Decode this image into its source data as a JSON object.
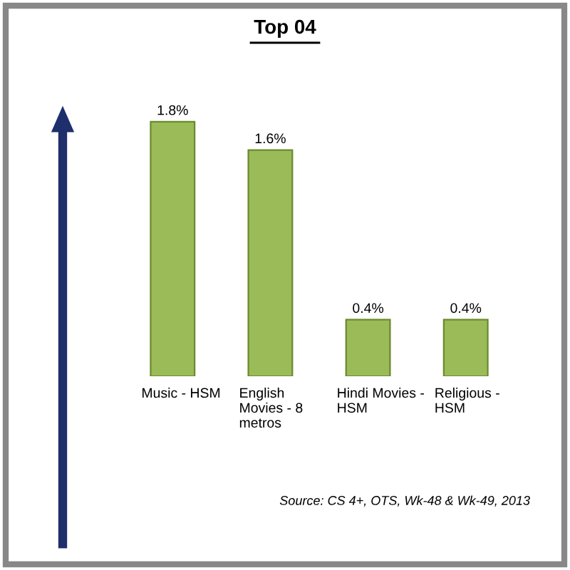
{
  "chart_data": {
    "type": "bar",
    "title": "Top 04",
    "categories": [
      "Music - HSM",
      "English\nMovies - 8\nmetros",
      "Hindi Movies -\nHSM",
      "Religious -\nHSM"
    ],
    "values": [
      1.8,
      1.6,
      0.4,
      0.4
    ],
    "value_labels": [
      "1.8%",
      "1.6%",
      "0.4%",
      "0.4%"
    ],
    "color": "#9bbb59",
    "annotations": [
      "Source: CS 4+, OTS, Wk-48 & Wk-49, 2013"
    ]
  }
}
